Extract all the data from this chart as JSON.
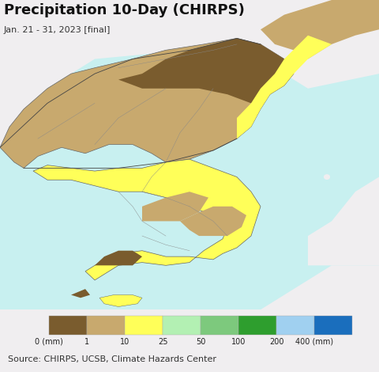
{
  "title": "Precipitation 10-Day (CHIRPS)",
  "subtitle": "Jan. 21 - 31, 2023 [final]",
  "source_text": "Source: CHIRPS, UCSB, Climate Hazards Center",
  "colorbar_colors": [
    "#7a5c2e",
    "#c8a96e",
    "#ffff59",
    "#b3f0b3",
    "#7dc97d",
    "#2e9e2e",
    "#a0d0f0",
    "#1a6ebd"
  ],
  "colorbar_tick_labels": [
    "0 (mm)",
    "1",
    "10",
    "25",
    "50",
    "100",
    "200",
    "400 (mm)"
  ],
  "ocean_color": "#c8f0f0",
  "land_bg_color": "#f0eef0",
  "title_fontsize": 13,
  "subtitle_fontsize": 8,
  "source_fontsize": 8,
  "background_color": "#f0eef0"
}
